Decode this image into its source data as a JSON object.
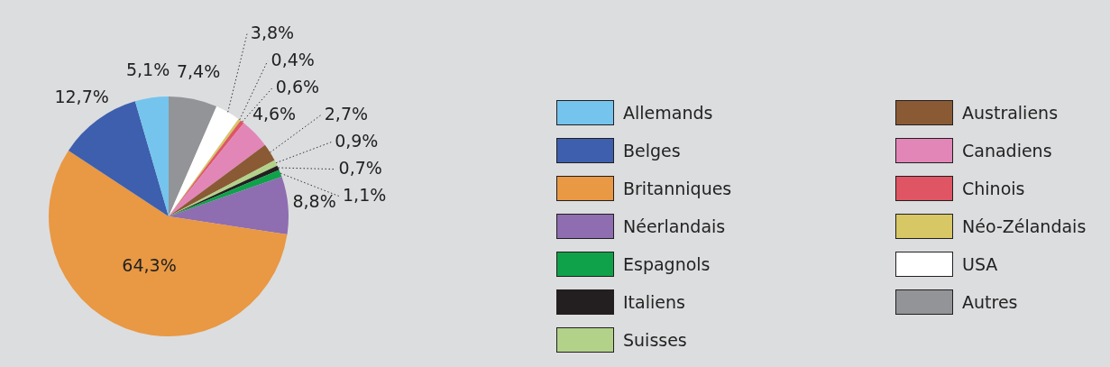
{
  "chart_data": {
    "type": "pie",
    "categories": [
      "Allemands",
      "Belges",
      "Britanniques",
      "Néerlandais",
      "Espagnols",
      "Italiens",
      "Suisses",
      "Australiens",
      "Canadiens",
      "Chinois",
      "Néo-Zélandais",
      "USA",
      "Autres"
    ],
    "values": [
      5.1,
      12.7,
      64.3,
      8.8,
      1.1,
      0.7,
      0.9,
      2.7,
      4.6,
      0.6,
      0.4,
      3.8,
      7.4
    ],
    "value_labels": [
      "5,1%",
      "12,7%",
      "64,3%",
      "8,8%",
      "1,1%",
      "0,7%",
      "0,9%",
      "2,7%",
      "4,6%",
      "0,6%",
      "0,4%",
      "3,8%",
      "7,4%"
    ],
    "colors": [
      "#74c4ee",
      "#3d5fad",
      "#e99843",
      "#8e6db1",
      "#0fa24a",
      "#231f20",
      "#b2d28a",
      "#8a5a35",
      "#e286b8",
      "#e05564",
      "#d7c765",
      "#ffffff",
      "#929497"
    ],
    "legend": "right"
  }
}
